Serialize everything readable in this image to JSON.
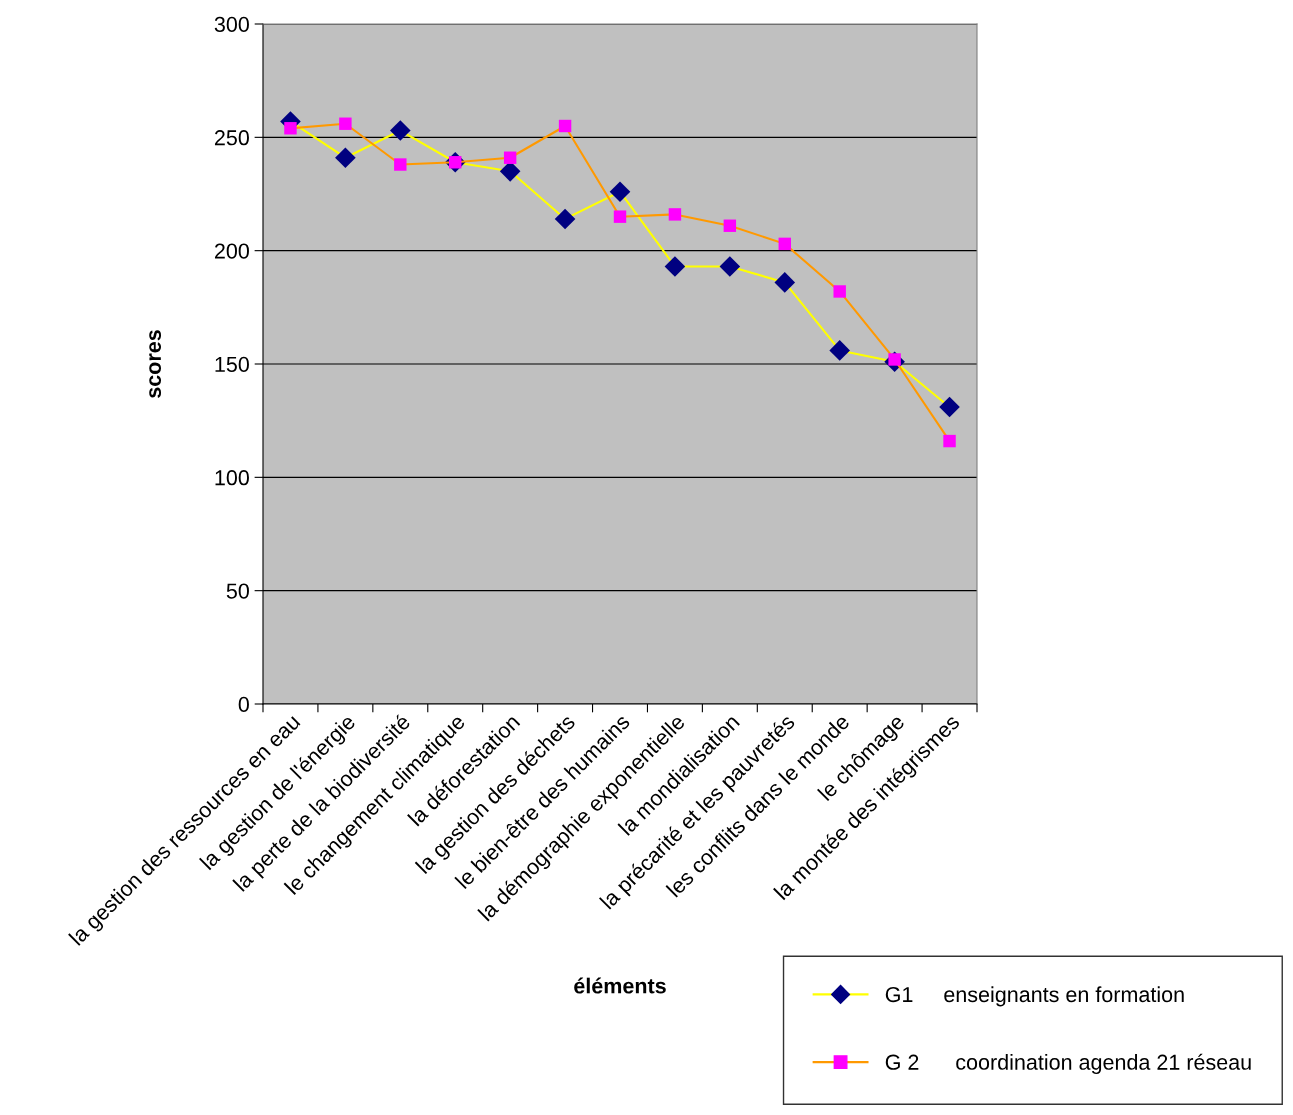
{
  "chart_data": {
    "type": "line",
    "xlabel": "éléments",
    "ylabel": "scores",
    "categories": [
      "la gestion des ressources en eau",
      "la gestion de l'énergie",
      "la perte de la biodiversité",
      "le changement climatique",
      "la déforestation",
      "la gestion des déchets",
      "le bien-être des humains",
      "la démographie exponentielle",
      "la mondialisation",
      "la précarité et les pauvretés",
      "les conflits dans le monde",
      "le chômage",
      "la montée des intégrismes"
    ],
    "series": [
      {
        "name": "G1     enseignants en formation",
        "color": "#ffff00",
        "colors": [
          "#000080",
          "#000080",
          "#000080",
          "#000080",
          "#000080",
          "#000080",
          "#000080",
          "#000080",
          "#000080",
          "#000080",
          "#000080",
          "#000080",
          "#000080"
        ],
        "marker": "diamond",
        "values": [
          257,
          241,
          253,
          239,
          235,
          214,
          226,
          193,
          193,
          186,
          156,
          151,
          131
        ]
      },
      {
        "name": "G 2      coordination agenda 21 réseau",
        "color": "#ff9900",
        "colors": [
          "#ff00ff",
          "#ff00ff",
          "#ff00ff",
          "#ff00ff",
          "#ff00ff",
          "#ff00ff",
          "#ff00ff",
          "#ff00ff",
          "#ff00ff",
          "#ff00ff",
          "#ff00ff",
          "#ff00ff",
          "#ff00ff"
        ],
        "marker": "square",
        "values": [
          254,
          256,
          238,
          239,
          241,
          255,
          215,
          216,
          211,
          203,
          182,
          152,
          116
        ]
      }
    ],
    "ylim": [
      0,
      300
    ],
    "yticks": [
      0,
      50,
      100,
      150,
      200,
      250,
      300
    ],
    "grid": "y",
    "legend": "bottom right"
  }
}
